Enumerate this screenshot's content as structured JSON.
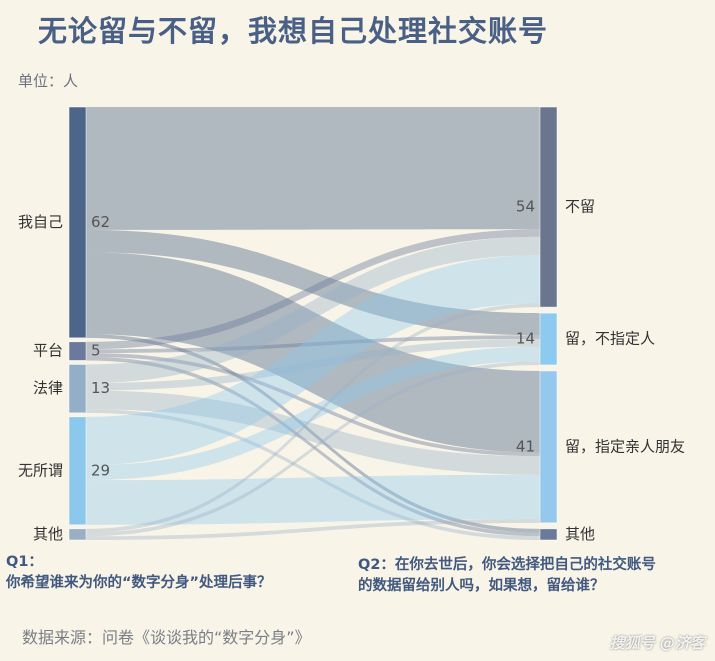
{
  "title": "无论留与不留，我想自己处理社交账号",
  "unit": "单位：人",
  "q1_lines": [
    "Q1：",
    "你希望谁来为你的“数字分身”处理后事？"
  ],
  "q2_lines": [
    "Q2：在你去世后，你会选择把自己的社交账号",
    "的数据留给别人吗，如果想，留给谁？"
  ],
  "source": "数据来源：问卷《谈谈我的“数字分身”》",
  "watermark": "搜狐号 @济客",
  "chart_data": {
    "type": "sankey",
    "title": "无论留与不留，我想自己处理社交账号",
    "unit": "人",
    "left_nodes": [
      {
        "name": "我自己",
        "value": 62,
        "color": "#4c6589"
      },
      {
        "name": "平台",
        "value": 5,
        "color": "#6b7a9c"
      },
      {
        "name": "法律",
        "value": 13,
        "color": "#93afc8"
      },
      {
        "name": "无所谓",
        "value": 29,
        "color": "#8cc8ec"
      },
      {
        "name": "其他",
        "value": 3,
        "color": "#9aafc4"
      }
    ],
    "right_nodes": [
      {
        "name": "不留",
        "value": 54,
        "color": "#6a7590"
      },
      {
        "name": "留，不指定人",
        "value": 14,
        "color": "#8ccbef"
      },
      {
        "name": "留，指定亲人朋友",
        "value": 41,
        "color": "#95c8ee"
      },
      {
        "name": "其他",
        "value": 3,
        "color": "#6a7a98"
      }
    ],
    "flows": [
      {
        "source": "我自己",
        "target": "不留",
        "value": 33
      },
      {
        "source": "我自己",
        "target": "留，不指定人",
        "value": 6
      },
      {
        "source": "我自己",
        "target": "留，指定亲人朋友",
        "value": 22
      },
      {
        "source": "我自己",
        "target": "其他",
        "value": 1
      },
      {
        "source": "平台",
        "target": "不留",
        "value": 2
      },
      {
        "source": "平台",
        "target": "留，不指定人",
        "value": 1
      },
      {
        "source": "平台",
        "target": "留，指定亲人朋友",
        "value": 1
      },
      {
        "source": "平台",
        "target": "其他",
        "value": 1
      },
      {
        "source": "法律",
        "target": "不留",
        "value": 5
      },
      {
        "source": "法律",
        "target": "留，不指定人",
        "value": 2
      },
      {
        "source": "法律",
        "target": "留，指定亲人朋友",
        "value": 5
      },
      {
        "source": "法律",
        "target": "其他",
        "value": 1
      },
      {
        "source": "无所谓",
        "target": "不留",
        "value": 13
      },
      {
        "source": "无所谓",
        "target": "留，不指定人",
        "value": 4
      },
      {
        "source": "无所谓",
        "target": "留，指定亲人朋友",
        "value": 12
      },
      {
        "source": "其他",
        "target": "不留",
        "value": 1
      },
      {
        "source": "其他",
        "target": "留，不指定人",
        "value": 1
      },
      {
        "source": "其他",
        "target": "留，指定亲人朋友",
        "value": 1
      }
    ]
  }
}
